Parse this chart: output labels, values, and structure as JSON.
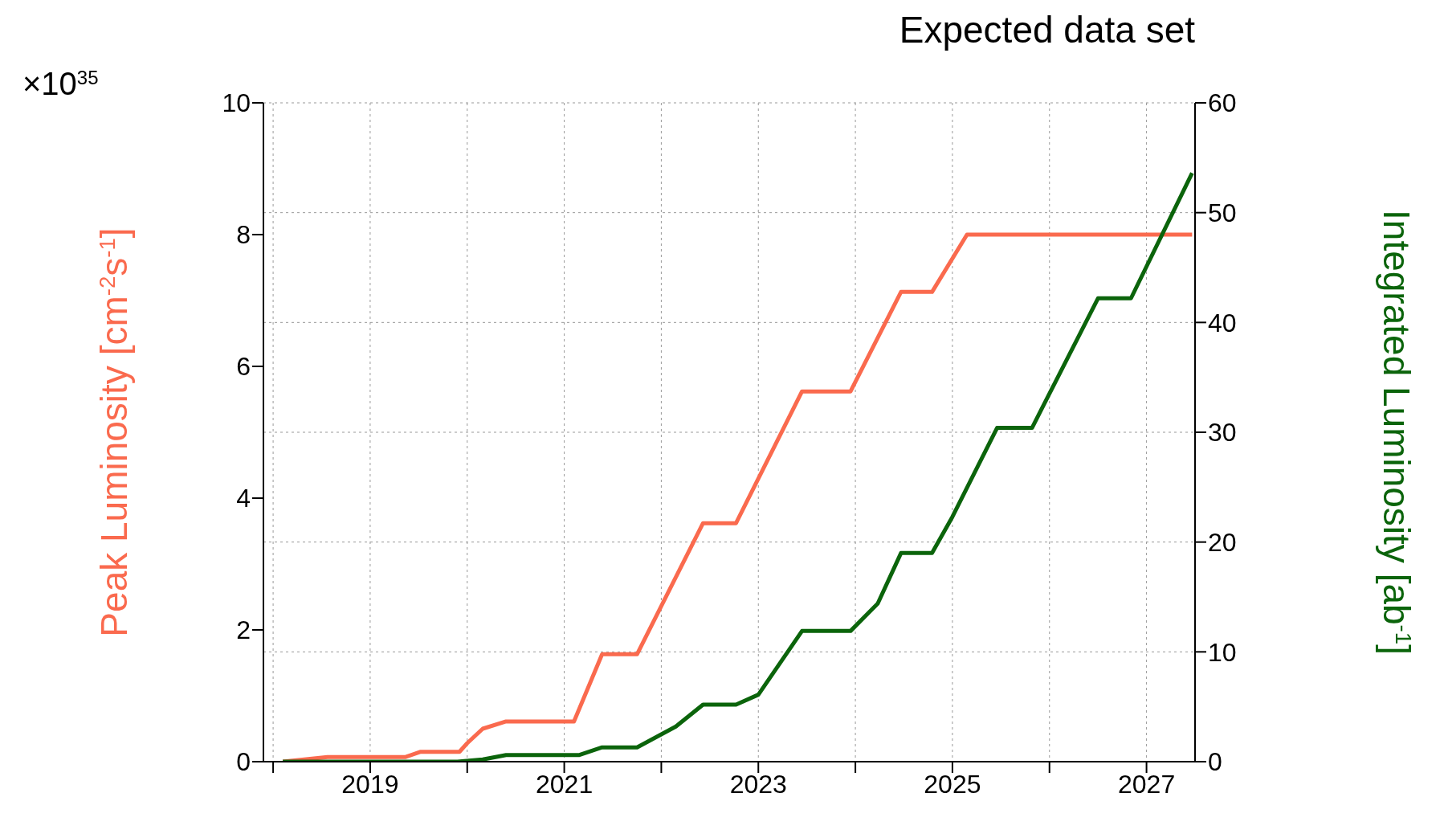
{
  "chart_data": {
    "type": "line",
    "title": "Expected data set",
    "ylabel": "Peak Luminosity [cm$^{-2}$s$^{-1}$]",
    "y2label": "Integrated Luminosity [ab$^{-1}$]",
    "annotations": [
      "×10$^{35}$"
    ],
    "xlim": [
      2017.9,
      2027.5
    ],
    "xticks": [
      {
        "value": 2018,
        "label": null
      },
      2019,
      {
        "value": 2020,
        "label": null
      },
      2021,
      {
        "value": 2022,
        "label": null
      },
      2023,
      {
        "value": 2024,
        "label": null
      },
      2025,
      {
        "value": 2026,
        "label": null
      },
      2027
    ],
    "ylim": [
      0,
      10
    ],
    "yticks": [
      0,
      2,
      4,
      6,
      8,
      10
    ],
    "y2lim": [
      0,
      60
    ],
    "y2ticks": [
      0,
      10,
      20,
      30,
      40,
      50,
      60
    ],
    "grid": true,
    "marker": "none",
    "line_style": "solid",
    "series": [
      {
        "color": "#fa6a4e",
        "x": [
          2018.1,
          2018.56,
          2019.36,
          2019.52,
          2019.76,
          2019.92,
          2020.0,
          2020.16,
          2020.4,
          2021.1,
          2021.39,
          2021.75,
          2022.43,
          2022.77,
          2023.45,
          2023.95,
          2024.47,
          2024.79,
          2025.15,
          2027.47
        ],
        "values": [
          0,
          0.07,
          0.07,
          0.15,
          0.15,
          0.15,
          0.28,
          0.5,
          0.61,
          0.61,
          1.63,
          1.63,
          3.62,
          3.62,
          5.62,
          5.62,
          7.13,
          7.13,
          8.0,
          8.0
        ]
      },
      {
        "color": "#0b640b",
        "axis": "y2",
        "x": [
          2018.1,
          2019.9,
          2020.16,
          2020.4,
          2021.15,
          2021.39,
          2021.75,
          2022.15,
          2022.43,
          2022.77,
          2023.0,
          2023.45,
          2023.95,
          2024.23,
          2024.47,
          2024.79,
          2025.0,
          2025.46,
          2025.82,
          2026.5,
          2026.84,
          2027.47
        ],
        "values": [
          0,
          0,
          0.2,
          0.6,
          0.6,
          1.3,
          1.3,
          3.2,
          5.2,
          5.2,
          6.1,
          11.9,
          11.9,
          14.4,
          19.0,
          19.0,
          22.3,
          30.4,
          30.4,
          42.2,
          42.2,
          53.6
        ]
      }
    ]
  }
}
